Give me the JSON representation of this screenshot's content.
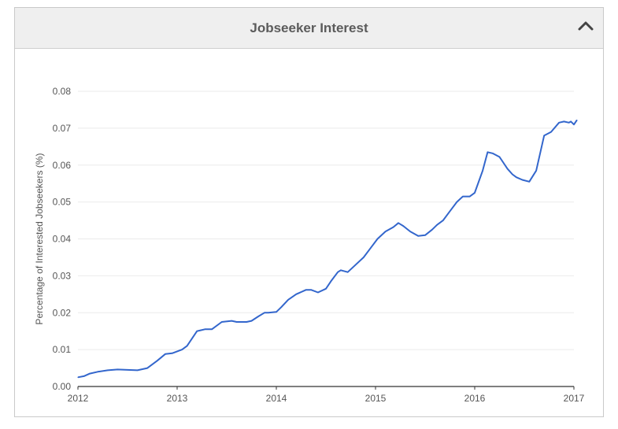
{
  "panel": {
    "title": "Jobseeker Interest",
    "toggle_icon": "chevron-up-icon"
  },
  "colors": {
    "line": "#3366cc",
    "grid": "#ebebeb",
    "axis": "#333333",
    "text": "#555555",
    "header_bg": "#efefef"
  },
  "chart_data": {
    "type": "line",
    "title": "",
    "xlabel": "",
    "ylabel": "Percentage of Interested Jobseekers (%)",
    "xlim": [
      2012,
      2017
    ],
    "ylim": [
      0,
      0.08
    ],
    "xticks": [
      "2012",
      "2013",
      "2014",
      "2015",
      "2016",
      "2017"
    ],
    "yticks": [
      "0.00",
      "0.01",
      "0.02",
      "0.03",
      "0.04",
      "0.05",
      "0.06",
      "0.07",
      "0.08"
    ],
    "grid": true,
    "legend": "none",
    "series": [
      {
        "x": [
          2012.0,
          2012.06,
          2012.12,
          2012.2,
          2012.3,
          2012.4,
          2012.5,
          2012.6,
          2012.7,
          2012.8,
          2012.88,
          2012.95,
          2013.05,
          2013.1,
          2013.15,
          2013.2,
          2013.28,
          2013.35,
          2013.45,
          2013.55,
          2013.6,
          2013.7,
          2013.75,
          2013.82,
          2013.88,
          2013.92,
          2014.0,
          2014.05,
          2014.12,
          2014.2,
          2014.3,
          2014.35,
          2014.42,
          2014.5,
          2014.55,
          2014.62,
          2014.65,
          2014.72,
          2014.8,
          2014.88,
          2014.95,
          2015.02,
          2015.1,
          2015.18,
          2015.23,
          2015.28,
          2015.35,
          2015.43,
          2015.5,
          2015.57,
          2015.62,
          2015.68,
          2015.75,
          2015.82,
          2015.88,
          2015.95,
          2016.0,
          2016.08,
          2016.13,
          2016.18,
          2016.25,
          2016.33,
          2016.38,
          2016.42,
          2016.48,
          2016.55,
          2016.62,
          2016.7,
          2016.77,
          2016.85,
          2016.9,
          2016.95,
          2016.97,
          2017.0,
          2017.03
        ],
        "y": [
          0.0025,
          0.0028,
          0.0035,
          0.004,
          0.0044,
          0.0046,
          0.0045,
          0.0044,
          0.005,
          0.007,
          0.0088,
          0.009,
          0.01,
          0.011,
          0.013,
          0.015,
          0.0155,
          0.0155,
          0.0175,
          0.0178,
          0.0175,
          0.0175,
          0.0178,
          0.019,
          0.02,
          0.02,
          0.0202,
          0.0215,
          0.0235,
          0.025,
          0.0262,
          0.0262,
          0.0255,
          0.0265,
          0.0285,
          0.031,
          0.0315,
          0.031,
          0.033,
          0.035,
          0.0375,
          0.04,
          0.042,
          0.0432,
          0.0443,
          0.0435,
          0.042,
          0.0408,
          0.041,
          0.0425,
          0.0438,
          0.045,
          0.0475,
          0.05,
          0.0515,
          0.0515,
          0.0525,
          0.0585,
          0.0635,
          0.0632,
          0.0622,
          0.059,
          0.0575,
          0.0567,
          0.056,
          0.0555,
          0.0585,
          0.068,
          0.069,
          0.0715,
          0.0718,
          0.0715,
          0.0718,
          0.071,
          0.0722
        ]
      }
    ]
  }
}
